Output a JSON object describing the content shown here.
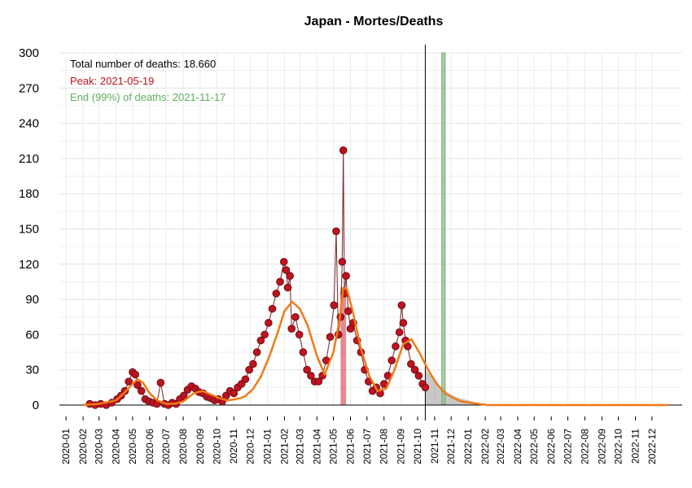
{
  "chart_data": {
    "type": "line",
    "title": "Japan - Mortes/Deaths",
    "annotations": {
      "total": "Total number of deaths: 18.660",
      "peak": "Peak: 2021-05-19",
      "end": "End (99%) of deaths: 2021-11-17"
    },
    "ylim": [
      0,
      300
    ],
    "yticks": [
      0,
      30,
      60,
      90,
      120,
      150,
      180,
      210,
      240,
      270,
      300
    ],
    "xlim": [
      "2019-12-20",
      "2023-01-25"
    ],
    "xticks": [
      "2020-01",
      "2020-02",
      "2020-03",
      "2020-04",
      "2020-05",
      "2020-06",
      "2020-07",
      "2020-08",
      "2020-09",
      "2020-10",
      "2020-11",
      "2020-12",
      "2021-01",
      "2021-02",
      "2021-03",
      "2021-04",
      "2021-05",
      "2021-06",
      "2021-07",
      "2021-08",
      "2021-09",
      "2021-10",
      "2021-11",
      "2021-12",
      "2022-01",
      "2022-02",
      "2022-03",
      "2022-04",
      "2022-05",
      "2022-06",
      "2022-07",
      "2022-08",
      "2022-09",
      "2022-10",
      "2022-11",
      "2022-12"
    ],
    "grid": true,
    "current_date": "2021-10-15",
    "peak_date": "2021-05-19",
    "peak_band": [
      "2021-05-14",
      "2021-05-24"
    ],
    "end_date": "2021-11-17",
    "end_band": [
      "2021-11-14",
      "2021-11-20"
    ],
    "colors": {
      "points": "#c0121f",
      "point_outline": "#6b0f14",
      "fit": "#f07a16",
      "peak_band": "#d63a4a",
      "end_band": "#8fbf8f",
      "forecast": "#9a9a9a",
      "annotation_total": "#000000",
      "annotation_peak": "#c0121f",
      "annotation_end": "#5fae5f"
    },
    "series": [
      {
        "role": "observed daily deaths",
        "x": [
          "2020-02-13",
          "2020-02-23",
          "2020-03-04",
          "2020-03-14",
          "2020-03-24",
          "2020-04-03",
          "2020-04-10",
          "2020-04-17",
          "2020-04-24",
          "2020-05-01",
          "2020-05-06",
          "2020-05-10",
          "2020-05-17",
          "2020-05-24",
          "2020-05-31",
          "2020-06-07",
          "2020-06-14",
          "2020-06-21",
          "2020-06-28",
          "2020-07-05",
          "2020-07-12",
          "2020-07-19",
          "2020-07-26",
          "2020-08-02",
          "2020-08-09",
          "2020-08-16",
          "2020-08-23",
          "2020-08-30",
          "2020-09-06",
          "2020-09-13",
          "2020-09-20",
          "2020-09-27",
          "2020-10-04",
          "2020-10-11",
          "2020-10-18",
          "2020-10-25",
          "2020-11-01",
          "2020-11-08",
          "2020-11-15",
          "2020-11-22",
          "2020-11-29",
          "2020-12-06",
          "2020-12-13",
          "2020-12-20",
          "2020-12-27",
          "2021-01-03",
          "2021-01-10",
          "2021-01-17",
          "2021-01-24",
          "2021-01-31",
          "2021-02-04",
          "2021-02-07",
          "2021-02-11",
          "2021-02-14",
          "2021-02-21",
          "2021-02-28",
          "2021-03-07",
          "2021-03-14",
          "2021-03-21",
          "2021-03-28",
          "2021-04-04",
          "2021-04-11",
          "2021-04-18",
          "2021-04-25",
          "2021-05-02",
          "2021-05-06",
          "2021-05-10",
          "2021-05-14",
          "2021-05-17",
          "2021-05-19",
          "2021-05-21",
          "2021-05-24",
          "2021-05-28",
          "2021-06-01",
          "2021-06-06",
          "2021-06-13",
          "2021-06-20",
          "2021-06-27",
          "2021-07-04",
          "2021-07-11",
          "2021-07-18",
          "2021-07-25",
          "2021-08-01",
          "2021-08-08",
          "2021-08-15",
          "2021-08-22",
          "2021-08-29",
          "2021-09-02",
          "2021-09-05",
          "2021-09-09",
          "2021-09-13",
          "2021-09-19",
          "2021-09-26",
          "2021-10-03",
          "2021-10-10",
          "2021-10-15"
        ],
        "y": [
          1,
          0,
          1,
          0,
          2,
          5,
          8,
          12,
          20,
          28,
          26,
          17,
          12,
          5,
          3,
          2,
          1,
          19,
          1,
          0,
          2,
          1,
          5,
          8,
          13,
          16,
          14,
          11,
          10,
          7,
          6,
          4,
          5,
          3,
          8,
          12,
          10,
          15,
          18,
          22,
          30,
          35,
          45,
          55,
          60,
          70,
          82,
          95,
          105,
          122,
          115,
          100,
          110,
          65,
          75,
          60,
          45,
          30,
          25,
          20,
          20,
          25,
          38,
          58,
          85,
          148,
          60,
          75,
          122,
          217,
          95,
          110,
          80,
          65,
          70,
          55,
          45,
          30,
          20,
          12,
          15,
          10,
          18,
          25,
          38,
          50,
          62,
          85,
          70,
          55,
          50,
          35,
          30,
          25,
          18,
          15
        ]
      },
      {
        "role": "fitted curve",
        "x": [
          "2020-02-01",
          "2020-03-01",
          "2020-04-01",
          "2020-04-15",
          "2020-05-01",
          "2020-05-10",
          "2020-05-20",
          "2020-06-01",
          "2020-06-15",
          "2020-07-01",
          "2020-07-15",
          "2020-08-01",
          "2020-08-20",
          "2020-09-05",
          "2020-09-20",
          "2020-10-05",
          "2020-10-20",
          "2020-11-05",
          "2020-11-20",
          "2020-12-05",
          "2020-12-20",
          "2021-01-05",
          "2021-01-20",
          "2021-02-01",
          "2021-02-15",
          "2021-03-01",
          "2021-03-15",
          "2021-04-01",
          "2021-04-15",
          "2021-05-01",
          "2021-05-12",
          "2021-05-19",
          "2021-05-26",
          "2021-06-05",
          "2021-06-20",
          "2021-07-05",
          "2021-07-20",
          "2021-08-05",
          "2021-08-20",
          "2021-09-05",
          "2021-09-20",
          "2021-10-05",
          "2021-10-20",
          "2021-11-05",
          "2021-11-20",
          "2021-12-05",
          "2021-12-20",
          "2022-01-05",
          "2022-01-20",
          "2022-02-05",
          "2022-02-20",
          "2022-03-05",
          "2022-04-01",
          "2022-06-01",
          "2022-08-01",
          "2022-10-01",
          "2022-12-31"
        ],
        "y": [
          0,
          1,
          4,
          10,
          18,
          22,
          19,
          10,
          4,
          1,
          1,
          3,
          10,
          12,
          9,
          6,
          4,
          5,
          7,
          13,
          24,
          42,
          62,
          80,
          88,
          82,
          68,
          42,
          26,
          45,
          72,
          100,
          98,
          80,
          48,
          25,
          12,
          14,
          30,
          52,
          56,
          44,
          30,
          18,
          10,
          6,
          3,
          2,
          1,
          0,
          0,
          0,
          0,
          0,
          0,
          0,
          0
        ]
      },
      {
        "role": "forecast band upper",
        "x": [
          "2021-10-15",
          "2021-11-01",
          "2021-11-15",
          "2021-12-01",
          "2021-12-15",
          "2022-01-01",
          "2022-01-15",
          "2022-02-01"
        ],
        "y": [
          30,
          22,
          14,
          9,
          6,
          4,
          2,
          1
        ]
      }
    ]
  }
}
